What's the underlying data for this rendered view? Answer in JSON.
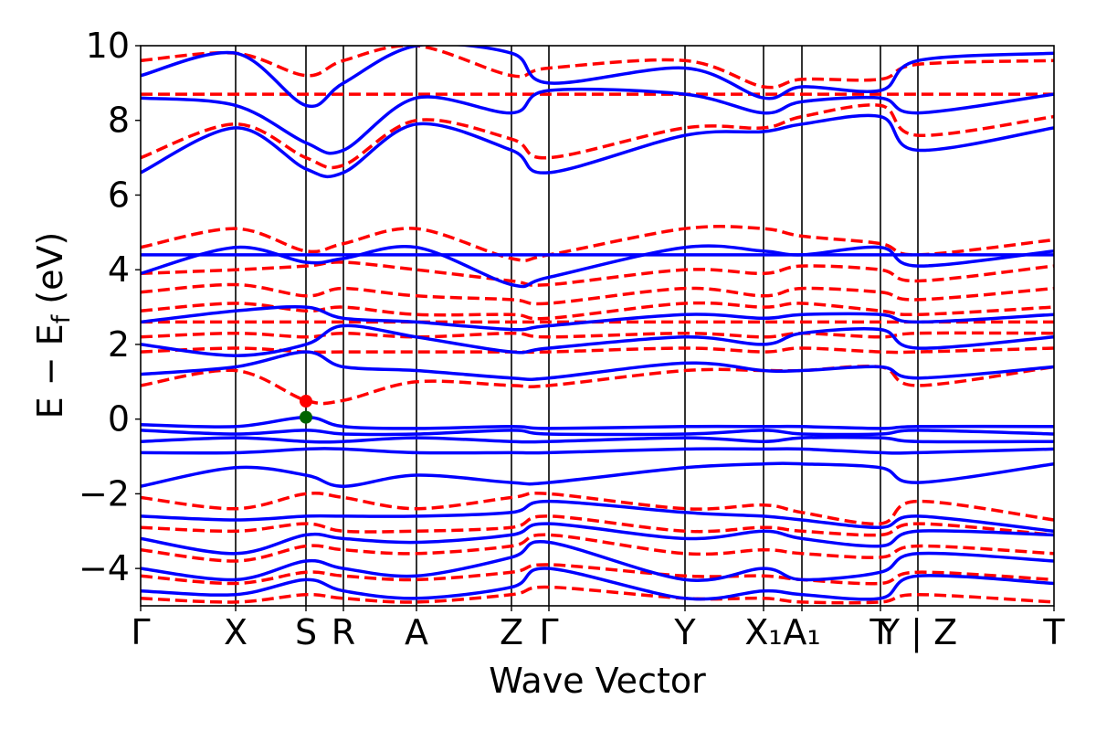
{
  "chart_data": {
    "type": "line",
    "title": "",
    "xlabel": "Wave Vector",
    "ylabel": "E − E_f (eV)",
    "ylabel_parts": {
      "main": "E − E",
      "sub": "f",
      "unit": " (eV)"
    },
    "ylim": [
      -5,
      10
    ],
    "yticks": [
      {
        "value": -4,
        "label": "−4"
      },
      {
        "value": -2,
        "label": "−2"
      },
      {
        "value": 0,
        "label": "0"
      },
      {
        "value": 2,
        "label": "2"
      },
      {
        "value": 4,
        "label": "4"
      },
      {
        "value": 6,
        "label": "6"
      },
      {
        "value": 8,
        "label": "8"
      },
      {
        "value": 10,
        "label": "10"
      }
    ],
    "kpath": [
      {
        "label": "Γ",
        "k": 0.0
      },
      {
        "label": "X",
        "k": 0.104
      },
      {
        "label": "S",
        "k": 0.181
      },
      {
        "label": "R",
        "k": 0.222
      },
      {
        "label": "A",
        "k": 0.302
      },
      {
        "label": "Z",
        "k": 0.406
      },
      {
        "label": "Γ",
        "k": 0.447
      },
      {
        "label": "Y",
        "k": 0.596
      },
      {
        "label": "X₁",
        "k": 0.682
      },
      {
        "label": "A₁",
        "k": 0.724
      },
      {
        "label": "T",
        "k": 0.81
      },
      {
        "label": "Y | Z",
        "k": 0.851
      },
      {
        "label": "T",
        "k": 1.0
      }
    ],
    "kpath_breaks": [
      0.851
    ],
    "grid": false,
    "legend": "none",
    "colors": {
      "spin_up": "#0000ff",
      "spin_down": "#ff0000",
      "vbm": "#006400",
      "cbm": "#ff0000",
      "vertical_lines": "#000000"
    },
    "markers": [
      {
        "name": "VBM",
        "k": 0.181,
        "energy": 0.05,
        "color": "#006400"
      },
      {
        "name": "CBM",
        "k": 0.181,
        "energy": 0.48,
        "color": "#ff0000"
      }
    ],
    "series": [
      {
        "style": "solid",
        "color": "#0000ff",
        "x": [
          0,
          0.104,
          0.181,
          0.222,
          0.302,
          0.406,
          0.447,
          0.596,
          0.682,
          0.724,
          0.81,
          0.851,
          1.0
        ],
        "y": [
          -1.8,
          -1.3,
          -1.5,
          -1.8,
          -1.5,
          -1.7,
          -1.7,
          -1.3,
          -1.2,
          -1.2,
          -1.3,
          -1.7,
          -1.2
        ]
      },
      {
        "style": "solid",
        "color": "#0000ff",
        "x": [
          0,
          0.104,
          0.181,
          0.222,
          0.302,
          0.406,
          0.447,
          0.596,
          0.682,
          0.724,
          0.81,
          0.851,
          1.0
        ],
        "y": [
          -0.9,
          -0.9,
          -0.8,
          -0.8,
          -0.9,
          -0.9,
          -0.9,
          -0.8,
          -0.8,
          -0.8,
          -0.9,
          -0.9,
          -0.8
        ]
      },
      {
        "style": "solid",
        "color": "#0000ff",
        "x": [
          0,
          0.104,
          0.181,
          0.222,
          0.302,
          0.406,
          0.447,
          0.596,
          0.682,
          0.724,
          0.81,
          0.851,
          1.0
        ],
        "y": [
          -0.6,
          -0.5,
          -0.6,
          -0.6,
          -0.5,
          -0.6,
          -0.6,
          -0.5,
          -0.6,
          -0.5,
          -0.5,
          -0.6,
          -0.6
        ]
      },
      {
        "style": "solid",
        "color": "#0000ff",
        "x": [
          0,
          0.104,
          0.181,
          0.222,
          0.302,
          0.406,
          0.447,
          0.596,
          0.682,
          0.724,
          0.81,
          0.851,
          1.0
        ],
        "y": [
          -0.3,
          -0.4,
          -0.3,
          -0.4,
          -0.4,
          -0.3,
          -0.4,
          -0.4,
          -0.3,
          -0.4,
          -0.4,
          -0.3,
          -0.4
        ]
      },
      {
        "style": "solid",
        "color": "#0000ff",
        "x": [
          0,
          0.104,
          0.181,
          0.222,
          0.302,
          0.406,
          0.447,
          0.596,
          0.682,
          0.724,
          0.81,
          0.851,
          1.0
        ],
        "y": [
          -0.15,
          -0.2,
          0.05,
          -0.2,
          -0.25,
          -0.2,
          -0.25,
          -0.2,
          -0.2,
          -0.2,
          -0.25,
          -0.2,
          -0.2
        ]
      },
      {
        "style": "solid",
        "color": "#0000ff",
        "x": [
          0,
          0.104,
          0.181,
          0.222,
          0.302,
          0.406,
          0.447,
          0.596,
          0.682,
          0.724,
          0.81,
          0.851,
          1.0
        ],
        "y": [
          1.2,
          1.4,
          1.8,
          1.4,
          1.3,
          1.1,
          1.1,
          1.5,
          1.3,
          1.3,
          1.4,
          1.1,
          1.4
        ]
      },
      {
        "style": "solid",
        "color": "#0000ff",
        "x": [
          0,
          0.104,
          0.181,
          0.222,
          0.302,
          0.406,
          0.447,
          0.596,
          0.682,
          0.724,
          0.81,
          0.851,
          1.0
        ],
        "y": [
          2.0,
          1.7,
          2.0,
          2.5,
          2.2,
          1.8,
          1.9,
          2.2,
          2.0,
          2.3,
          2.4,
          1.9,
          2.2
        ]
      },
      {
        "style": "solid",
        "color": "#0000ff",
        "x": [
          0,
          0.104,
          0.181,
          0.222,
          0.302,
          0.406,
          0.447,
          0.596,
          0.682,
          0.724,
          0.81,
          0.851,
          1.0
        ],
        "y": [
          2.6,
          2.9,
          3.0,
          2.7,
          2.6,
          2.4,
          2.5,
          2.8,
          2.7,
          2.8,
          2.8,
          2.6,
          2.8
        ]
      },
      {
        "style": "solid",
        "color": "#0000ff",
        "x": [
          0,
          0.104,
          0.181,
          0.222,
          0.302,
          0.406,
          0.447,
          0.596,
          0.682,
          0.724,
          0.81,
          0.851,
          1.0
        ],
        "y": [
          4.4,
          4.4,
          4.4,
          4.4,
          4.4,
          4.4,
          4.4,
          4.4,
          4.4,
          4.4,
          4.4,
          4.4,
          4.4
        ]
      },
      {
        "style": "solid",
        "color": "#0000ff",
        "x": [
          0,
          0.104,
          0.181,
          0.222,
          0.302,
          0.406,
          0.447,
          0.596,
          0.682,
          0.724,
          0.81,
          0.851,
          1.0
        ],
        "y": [
          3.9,
          4.6,
          4.2,
          4.3,
          4.6,
          3.6,
          3.8,
          4.6,
          4.5,
          4.4,
          4.6,
          4.1,
          4.5
        ]
      },
      {
        "style": "solid",
        "color": "#0000ff",
        "x": [
          0,
          0.104,
          0.181,
          0.222,
          0.302,
          0.406,
          0.447,
          0.596,
          0.682,
          0.724,
          0.81,
          0.851,
          1.0
        ],
        "y": [
          6.6,
          7.8,
          6.7,
          6.6,
          7.9,
          7.2,
          6.6,
          7.6,
          7.7,
          7.9,
          8.1,
          7.2,
          7.8
        ]
      },
      {
        "style": "solid",
        "color": "#0000ff",
        "x": [
          0,
          0.104,
          0.181,
          0.222,
          0.302,
          0.406,
          0.447,
          0.596,
          0.682,
          0.724,
          0.81,
          0.851,
          1.0
        ],
        "y": [
          8.6,
          8.4,
          7.4,
          7.2,
          8.6,
          8.2,
          8.8,
          8.7,
          8.2,
          8.5,
          8.6,
          8.2,
          8.7
        ]
      },
      {
        "style": "solid",
        "color": "#0000ff",
        "x": [
          0,
          0.104,
          0.181,
          0.222,
          0.302,
          0.406,
          0.447,
          0.596,
          0.682,
          0.724,
          0.81,
          0.851,
          1.0
        ],
        "y": [
          9.2,
          9.8,
          8.4,
          9.0,
          10.0,
          9.8,
          9.0,
          9.4,
          8.6,
          8.9,
          8.8,
          9.6,
          9.8
        ]
      },
      {
        "style": "solid",
        "color": "#0000ff",
        "x": [
          0,
          0.104,
          0.181,
          0.222,
          0.302,
          0.406,
          0.447,
          0.596,
          0.682,
          0.724,
          0.81,
          0.851,
          1.0
        ],
        "y": [
          -2.6,
          -2.7,
          -2.6,
          -2.6,
          -2.6,
          -2.5,
          -2.2,
          -2.5,
          -2.6,
          -2.7,
          -2.9,
          -2.6,
          -3.0
        ]
      },
      {
        "style": "solid",
        "color": "#0000ff",
        "x": [
          0,
          0.104,
          0.181,
          0.222,
          0.302,
          0.406,
          0.447,
          0.596,
          0.682,
          0.724,
          0.81,
          0.851,
          1.0
        ],
        "y": [
          -3.2,
          -3.6,
          -3.1,
          -3.2,
          -3.3,
          -3.1,
          -2.8,
          -3.2,
          -3.0,
          -3.2,
          -3.4,
          -3.0,
          -3.1
        ]
      },
      {
        "style": "solid",
        "color": "#0000ff",
        "x": [
          0,
          0.104,
          0.181,
          0.222,
          0.302,
          0.406,
          0.447,
          0.596,
          0.682,
          0.724,
          0.81,
          0.851,
          1.0
        ],
        "y": [
          -4.0,
          -4.3,
          -3.8,
          -4.0,
          -4.2,
          -3.7,
          -3.3,
          -4.3,
          -4.0,
          -4.3,
          -4.1,
          -3.6,
          -3.8
        ]
      },
      {
        "style": "solid",
        "color": "#0000ff",
        "x": [
          0,
          0.104,
          0.181,
          0.222,
          0.302,
          0.406,
          0.447,
          0.596,
          0.682,
          0.724,
          0.81,
          0.851,
          1.0
        ],
        "y": [
          -4.6,
          -4.7,
          -4.3,
          -4.6,
          -4.8,
          -4.5,
          -4.0,
          -4.8,
          -4.6,
          -4.7,
          -4.8,
          -4.2,
          -4.4
        ]
      },
      {
        "style": "dashed",
        "color": "#ff0000",
        "x": [
          0,
          0.104,
          0.181,
          0.222,
          0.302,
          0.406,
          0.447,
          0.596,
          0.682,
          0.724,
          0.81,
          0.851,
          1.0
        ],
        "y": [
          0.9,
          1.3,
          0.5,
          0.5,
          1.0,
          0.9,
          0.9,
          1.3,
          1.3,
          1.3,
          1.4,
          0.9,
          1.4
        ]
      },
      {
        "style": "dashed",
        "color": "#ff0000",
        "x": [
          0,
          0.104,
          0.181,
          0.222,
          0.302,
          0.406,
          0.447,
          0.596,
          0.682,
          0.724,
          0.81,
          0.851,
          1.0
        ],
        "y": [
          1.8,
          1.9,
          1.8,
          1.8,
          1.8,
          1.8,
          1.8,
          1.9,
          1.8,
          1.9,
          1.8,
          1.8,
          1.9
        ]
      },
      {
        "style": "dashed",
        "color": "#ff0000",
        "x": [
          0,
          0.104,
          0.181,
          0.222,
          0.302,
          0.406,
          0.447,
          0.596,
          0.682,
          0.724,
          0.81,
          0.851,
          1.0
        ],
        "y": [
          2.2,
          2.3,
          2.2,
          2.3,
          2.2,
          2.3,
          2.2,
          2.3,
          2.2,
          2.3,
          2.2,
          2.3,
          2.3
        ]
      },
      {
        "style": "dashed",
        "color": "#ff0000",
        "x": [
          0,
          0.104,
          0.181,
          0.222,
          0.302,
          0.406,
          0.447,
          0.596,
          0.682,
          0.724,
          0.81,
          0.851,
          1.0
        ],
        "y": [
          2.6,
          2.6,
          2.6,
          2.6,
          2.6,
          2.6,
          2.6,
          2.6,
          2.6,
          2.6,
          2.6,
          2.6,
          2.6
        ]
      },
      {
        "style": "dashed",
        "color": "#ff0000",
        "x": [
          0,
          0.104,
          0.181,
          0.222,
          0.302,
          0.406,
          0.447,
          0.596,
          0.682,
          0.724,
          0.81,
          0.851,
          1.0
        ],
        "y": [
          2.9,
          3.1,
          2.9,
          3.0,
          2.8,
          2.8,
          2.7,
          3.1,
          3.0,
          3.1,
          2.9,
          2.8,
          3.0
        ]
      },
      {
        "style": "dashed",
        "color": "#ff0000",
        "x": [
          0,
          0.104,
          0.181,
          0.222,
          0.302,
          0.406,
          0.447,
          0.596,
          0.682,
          0.724,
          0.81,
          0.851,
          1.0
        ],
        "y": [
          3.4,
          3.6,
          3.3,
          3.5,
          3.3,
          3.2,
          3.1,
          3.5,
          3.3,
          3.5,
          3.4,
          3.2,
          3.5
        ]
      },
      {
        "style": "dashed",
        "color": "#ff0000",
        "x": [
          0,
          0.104,
          0.181,
          0.222,
          0.302,
          0.406,
          0.447,
          0.596,
          0.682,
          0.724,
          0.81,
          0.851,
          1.0
        ],
        "y": [
          3.9,
          4.0,
          4.1,
          4.2,
          4.0,
          3.7,
          3.6,
          4.0,
          3.9,
          4.1,
          4.0,
          3.7,
          4.1
        ]
      },
      {
        "style": "dashed",
        "color": "#ff0000",
        "x": [
          0,
          0.104,
          0.181,
          0.222,
          0.302,
          0.406,
          0.447,
          0.596,
          0.682,
          0.724,
          0.81,
          0.851,
          1.0
        ],
        "y": [
          4.6,
          5.1,
          4.5,
          4.7,
          5.1,
          4.3,
          4.4,
          5.1,
          5.1,
          4.9,
          4.7,
          4.4,
          4.8
        ]
      },
      {
        "style": "dashed",
        "color": "#ff0000",
        "x": [
          0,
          0.104,
          0.181,
          0.222,
          0.302,
          0.406,
          0.447,
          0.596,
          0.682,
          0.724,
          0.81,
          0.851,
          1.0
        ],
        "y": [
          7.0,
          7.9,
          7.0,
          6.8,
          8.0,
          7.5,
          7.0,
          7.8,
          7.8,
          8.1,
          8.4,
          7.6,
          8.1
        ]
      },
      {
        "style": "dashed",
        "color": "#ff0000",
        "x": [
          0,
          0.104,
          0.181,
          0.222,
          0.302,
          0.406,
          0.447,
          0.596,
          0.682,
          0.724,
          0.81,
          0.851,
          1.0
        ],
        "y": [
          8.7,
          8.7,
          8.7,
          8.7,
          8.7,
          8.7,
          8.7,
          8.7,
          8.7,
          8.7,
          8.7,
          8.7,
          8.7
        ]
      },
      {
        "style": "dashed",
        "color": "#ff0000",
        "x": [
          0,
          0.104,
          0.181,
          0.222,
          0.302,
          0.406,
          0.447,
          0.596,
          0.682,
          0.724,
          0.81,
          0.851,
          1.0
        ],
        "y": [
          9.6,
          9.8,
          9.2,
          9.6,
          10.0,
          9.2,
          9.4,
          9.6,
          8.9,
          9.1,
          9.1,
          9.5,
          9.6
        ]
      },
      {
        "style": "dashed",
        "color": "#ff0000",
        "x": [
          0,
          0.104,
          0.181,
          0.222,
          0.302,
          0.406,
          0.447,
          0.596,
          0.682,
          0.724,
          0.81,
          0.851,
          1.0
        ],
        "y": [
          -2.1,
          -2.4,
          -2.0,
          -2.1,
          -2.4,
          -2.1,
          -2.0,
          -2.4,
          -2.3,
          -2.5,
          -2.8,
          -2.2,
          -2.7
        ]
      },
      {
        "style": "dashed",
        "color": "#ff0000",
        "x": [
          0,
          0.104,
          0.181,
          0.222,
          0.302,
          0.406,
          0.447,
          0.596,
          0.682,
          0.724,
          0.81,
          0.851,
          1.0
        ],
        "y": [
          -2.9,
          -3.0,
          -2.8,
          -3.0,
          -3.0,
          -2.9,
          -2.6,
          -3.0,
          -2.9,
          -3.0,
          -3.1,
          -2.8,
          -3.1
        ]
      },
      {
        "style": "dashed",
        "color": "#ff0000",
        "x": [
          0,
          0.104,
          0.181,
          0.222,
          0.302,
          0.406,
          0.447,
          0.596,
          0.682,
          0.724,
          0.81,
          0.851,
          1.0
        ],
        "y": [
          -3.5,
          -3.8,
          -3.4,
          -3.5,
          -3.6,
          -3.4,
          -3.1,
          -3.6,
          -3.5,
          -3.6,
          -3.7,
          -3.4,
          -3.6
        ]
      },
      {
        "style": "dashed",
        "color": "#ff0000",
        "x": [
          0,
          0.104,
          0.181,
          0.222,
          0.302,
          0.406,
          0.447,
          0.596,
          0.682,
          0.724,
          0.81,
          0.851,
          1.0
        ],
        "y": [
          -4.2,
          -4.4,
          -4.1,
          -4.2,
          -4.3,
          -4.1,
          -3.9,
          -4.2,
          -4.2,
          -4.3,
          -4.4,
          -4.1,
          -4.3
        ]
      },
      {
        "style": "dashed",
        "color": "#ff0000",
        "x": [
          0,
          0.104,
          0.181,
          0.222,
          0.302,
          0.406,
          0.447,
          0.596,
          0.682,
          0.724,
          0.81,
          0.851,
          1.0
        ],
        "y": [
          -4.8,
          -4.9,
          -4.7,
          -4.8,
          -4.9,
          -4.7,
          -4.5,
          -4.8,
          -4.8,
          -4.9,
          -4.9,
          -4.7,
          -4.9
        ]
      }
    ]
  }
}
